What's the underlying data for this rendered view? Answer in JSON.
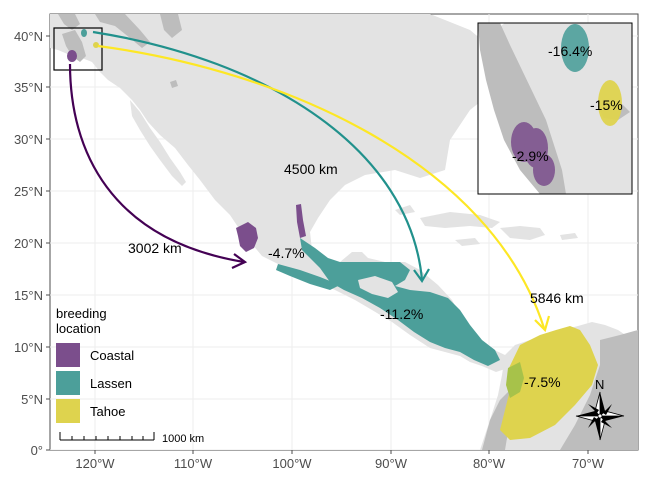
{
  "colors": {
    "coastal": "#440154",
    "lassen": "#21918c",
    "tahoe": "#fde725",
    "land": "#e3e3e3",
    "land_dark": "#b9b9b9",
    "ocean": "#ffffff",
    "grid": "#f0f0f0"
  },
  "axes": {
    "x_ticks": [
      "120°W",
      "110°W",
      "100°W",
      "90°W",
      "80°W",
      "70°W"
    ],
    "y_ticks": [
      "0°",
      "5°N",
      "10°N",
      "15°N",
      "20°N",
      "25°N",
      "30°N",
      "35°N",
      "40°N"
    ]
  },
  "legend": {
    "title_line1": "breeding",
    "title_line2": "location",
    "items": [
      {
        "key": "coastal",
        "label": "Coastal"
      },
      {
        "key": "lassen",
        "label": "Lassen"
      },
      {
        "key": "tahoe",
        "label": "Tahoe"
      }
    ]
  },
  "distances": {
    "coastal": "3002 km",
    "lassen": "4500 km",
    "tahoe": "5846 km"
  },
  "changes": {
    "coastal_winter": "-4.7%",
    "lassen_winter": "-11.2%",
    "tahoe_winter": "-7.5%",
    "coastal_breeding": "-2.9%",
    "lassen_breeding": "-16.4%",
    "tahoe_breeding": "-15%"
  },
  "scale_bar": {
    "label": "1000 km"
  },
  "north_arrow": {
    "label": "N"
  }
}
